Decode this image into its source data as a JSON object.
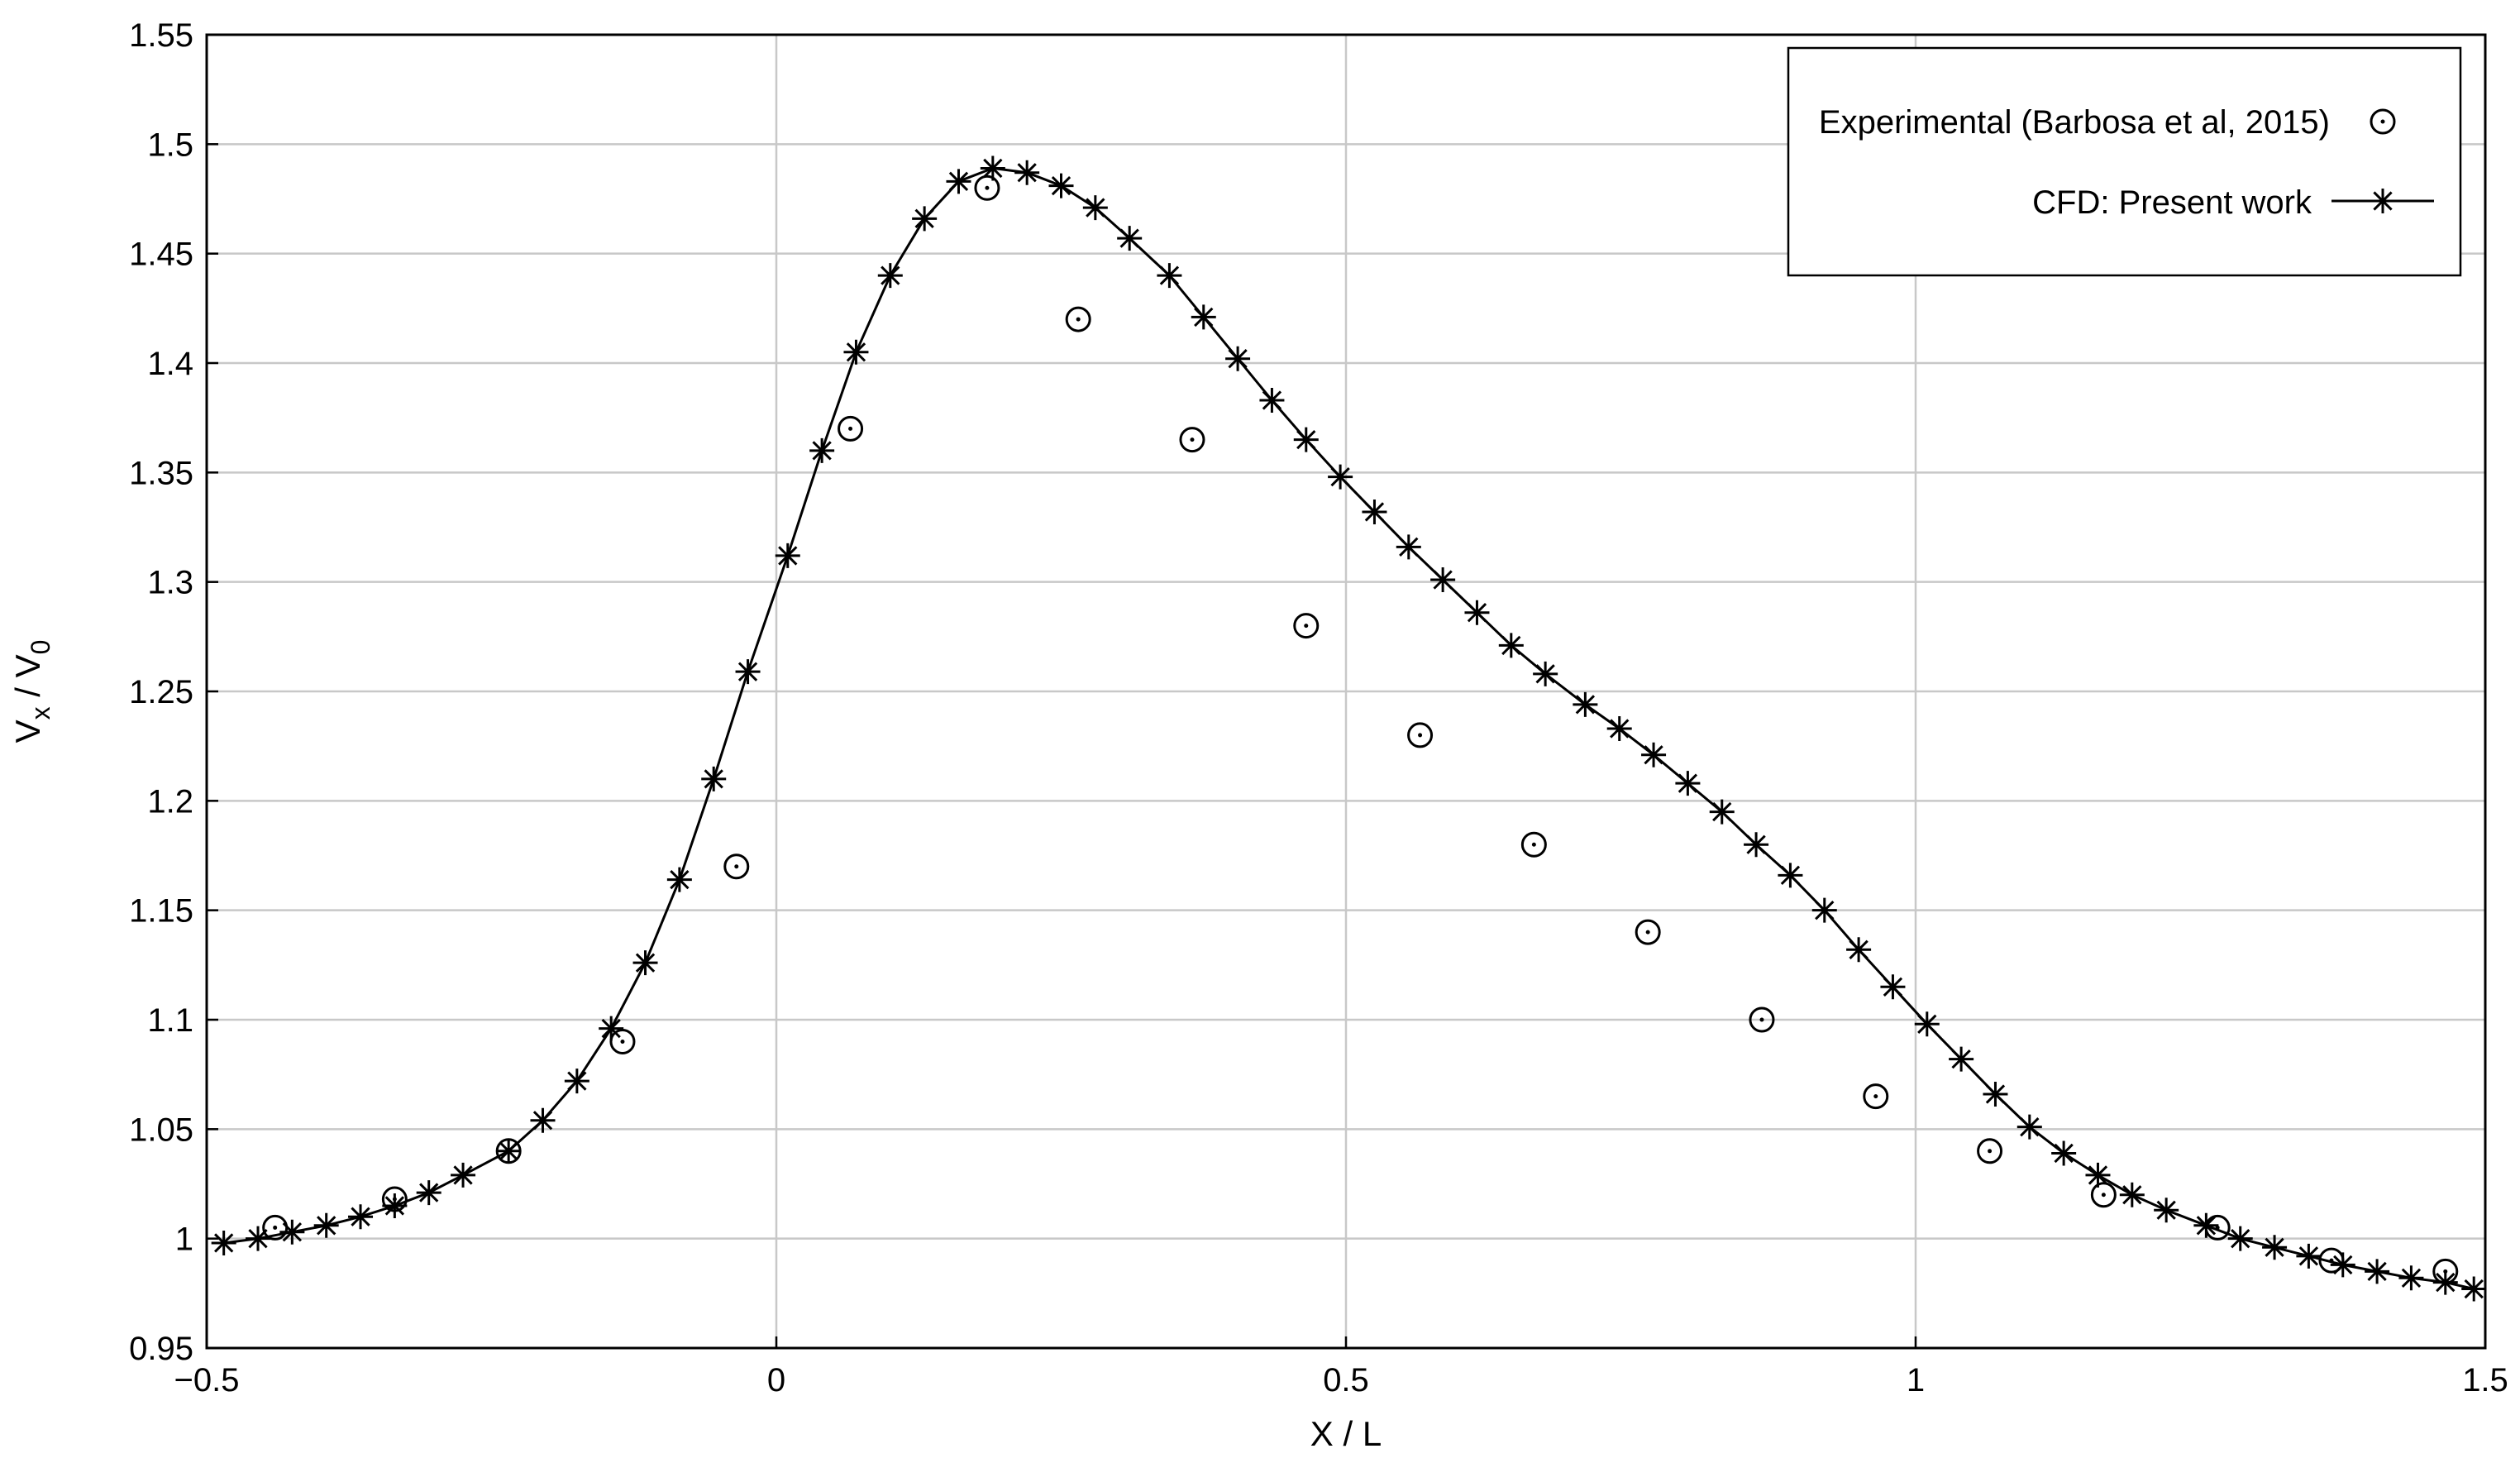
{
  "chart_data": {
    "type": "line",
    "title": "",
    "xlabel": "X / L",
    "ylabel": {
      "main": "V",
      "sub1": "x",
      "sep": " / V",
      "sub2": "0"
    },
    "xlim": [
      -0.5,
      1.5
    ],
    "ylim": [
      0.95,
      1.55
    ],
    "grid": true,
    "legend_position": "top-right",
    "x_ticks": [
      {
        "v": -0.5,
        "label": "−0.5"
      },
      {
        "v": 0,
        "label": "0"
      },
      {
        "v": 0.5,
        "label": "0.5"
      },
      {
        "v": 1,
        "label": "1"
      },
      {
        "v": 1.5,
        "label": "1.5"
      }
    ],
    "y_ticks": [
      {
        "v": 0.95,
        "label": "0.95"
      },
      {
        "v": 1.0,
        "label": "1"
      },
      {
        "v": 1.05,
        "label": "1.05"
      },
      {
        "v": 1.1,
        "label": "1.1"
      },
      {
        "v": 1.15,
        "label": "1.15"
      },
      {
        "v": 1.2,
        "label": "1.2"
      },
      {
        "v": 1.25,
        "label": "1.25"
      },
      {
        "v": 1.3,
        "label": "1.3"
      },
      {
        "v": 1.35,
        "label": "1.35"
      },
      {
        "v": 1.4,
        "label": "1.4"
      },
      {
        "v": 1.45,
        "label": "1.45"
      },
      {
        "v": 1.5,
        "label": "1.5"
      },
      {
        "v": 1.55,
        "label": "1.55"
      }
    ],
    "series": [
      {
        "name": "Experimental (Barbosa et al, 2015)",
        "marker": "circle-dot",
        "line": false,
        "x": [
          -0.44,
          -0.335,
          -0.235,
          -0.135,
          -0.035,
          0.065,
          0.185,
          0.265,
          0.365,
          0.465,
          0.565,
          0.665,
          0.765,
          0.865,
          0.965,
          1.065,
          1.165,
          1.265,
          1.365,
          1.465
        ],
        "y": [
          1.005,
          1.018,
          1.04,
          1.09,
          1.17,
          1.37,
          1.48,
          1.42,
          1.365,
          1.28,
          1.23,
          1.18,
          1.14,
          1.1,
          1.065,
          1.04,
          1.02,
          1.005,
          0.99,
          0.985
        ]
      },
      {
        "name": "CFD: Present work",
        "marker": "asterisk",
        "line": true,
        "x": [
          -0.485,
          -0.455,
          -0.425,
          -0.395,
          -0.365,
          -0.335,
          -0.305,
          -0.275,
          -0.235,
          -0.205,
          -0.175,
          -0.145,
          -0.115,
          -0.085,
          -0.055,
          -0.025,
          0.01,
          0.04,
          0.07,
          0.1,
          0.13,
          0.16,
          0.19,
          0.22,
          0.25,
          0.28,
          0.31,
          0.345,
          0.375,
          0.405,
          0.435,
          0.465,
          0.495,
          0.525,
          0.555,
          0.585,
          0.615,
          0.645,
          0.675,
          0.71,
          0.74,
          0.77,
          0.8,
          0.83,
          0.86,
          0.89,
          0.92,
          0.95,
          0.98,
          1.01,
          1.04,
          1.07,
          1.1,
          1.13,
          1.16,
          1.19,
          1.22,
          1.255,
          1.285,
          1.315,
          1.345,
          1.375,
          1.405,
          1.435,
          1.465,
          1.49
        ],
        "y": [
          0.998,
          1.0,
          1.003,
          1.006,
          1.01,
          1.015,
          1.021,
          1.029,
          1.04,
          1.054,
          1.072,
          1.096,
          1.126,
          1.164,
          1.21,
          1.259,
          1.312,
          1.36,
          1.405,
          1.44,
          1.466,
          1.483,
          1.489,
          1.487,
          1.481,
          1.471,
          1.457,
          1.44,
          1.421,
          1.402,
          1.383,
          1.365,
          1.348,
          1.332,
          1.316,
          1.301,
          1.286,
          1.271,
          1.258,
          1.244,
          1.233,
          1.221,
          1.208,
          1.195,
          1.18,
          1.166,
          1.15,
          1.132,
          1.115,
          1.098,
          1.082,
          1.066,
          1.051,
          1.039,
          1.029,
          1.02,
          1.013,
          1.006,
          1.0,
          0.996,
          0.992,
          0.988,
          0.985,
          0.982,
          0.98,
          0.977
        ]
      }
    ]
  }
}
